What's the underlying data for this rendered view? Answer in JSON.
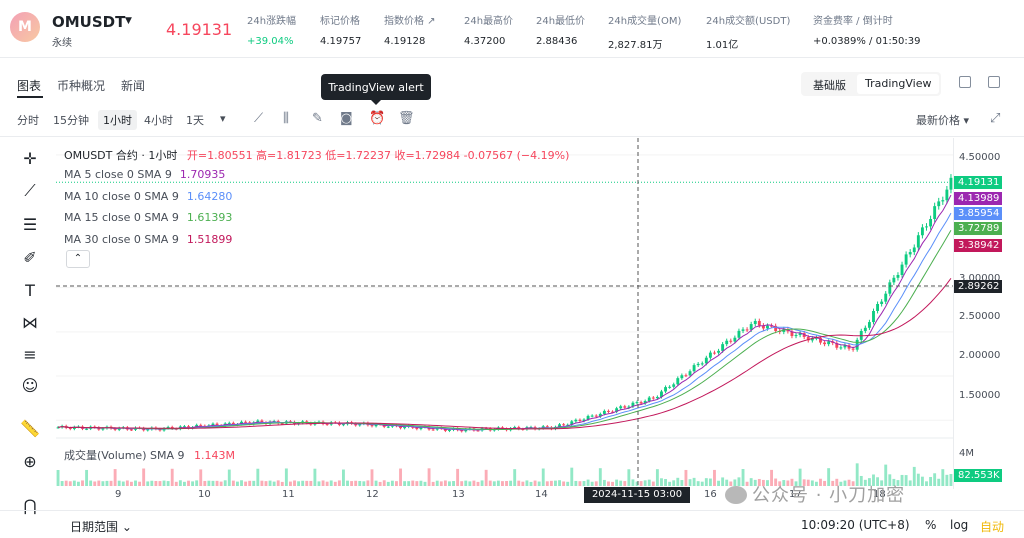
{
  "header": {
    "symbol": "OMUSDT",
    "subtitle": "永续",
    "dropdown": "▼",
    "last_price": "4.19131",
    "stats": [
      {
        "label": "24h涨跌幅",
        "value": "+39.04%",
        "color": "#0ecb81"
      },
      {
        "label": "标记价格",
        "value": "4.19757",
        "color": "#1e2329"
      },
      {
        "label": "指数价格 ↗",
        "value": "4.19128",
        "color": "#1e2329"
      },
      {
        "label": "24h最高价",
        "value": "4.37200",
        "color": "#1e2329"
      },
      {
        "label": "24h最低价",
        "value": "2.88436",
        "color": "#1e2329"
      },
      {
        "label": "24h成交量(OM)",
        "value": "2,827.81万",
        "color": "#1e2329"
      },
      {
        "label": "24h成交额(USDT)",
        "value": "1.01亿",
        "color": "#1e2329"
      },
      {
        "label": "资金费率 / 倒计时",
        "value": "+0.0389% / 01:50:39",
        "color": "#1e2329"
      }
    ]
  },
  "tabs": {
    "chart": "图表",
    "info": "币种概况",
    "news": "新闻"
  },
  "view_toggle": {
    "basic": "基础版",
    "tradingview": "TradingView"
  },
  "tooltip": "TradingView alert",
  "timeframes": {
    "items": [
      "分时",
      "15分钟",
      "1小时",
      "4小时",
      "1天"
    ],
    "selected": "1小时",
    "more": "▾"
  },
  "latest_price_menu": "最新价格 ▾",
  "legend": {
    "title": "OMUSDT 合约 · 1小时",
    "ohlc": "开=1.80551 高=1.81723 低=1.72237 收=1.72984 -0.07567 (−4.19%)",
    "ma": [
      {
        "label": "MA 5 close 0 SMA 9",
        "value": "1.70935",
        "color": "#9c27b0"
      },
      {
        "label": "MA 10 close 0 SMA 9",
        "value": "1.64280",
        "color": "#5b8ff9"
      },
      {
        "label": "MA 15 close 0 SMA 9",
        "value": "1.61393",
        "color": "#4caf50"
      },
      {
        "label": "MA 30 close 0 SMA 9",
        "value": "1.51899",
        "color": "#c2185b"
      }
    ],
    "collapse": "⌃",
    "volume_label": "成交量(Volume) SMA 9",
    "volume_value": "1.143M"
  },
  "y_axis": {
    "ticks": [
      "4.50000",
      "3.00000",
      "2.50000",
      "2.00000",
      "1.50000"
    ],
    "tags": [
      {
        "value": "4.19131",
        "color": "#0ecb81"
      },
      {
        "value": "4.13989",
        "color": "#9c27b0"
      },
      {
        "value": "3.85954",
        "color": "#5b8ff9"
      },
      {
        "value": "3.72789",
        "color": "#4caf50"
      },
      {
        "value": "3.38942",
        "color": "#c2185b"
      },
      {
        "value": "2.89262",
        "color": "#1e2329"
      }
    ],
    "vol_tick": "4M",
    "vol_tag": "82.553K"
  },
  "x_axis": {
    "ticks": [
      "9",
      "10",
      "11",
      "12",
      "13",
      "14",
      "16",
      "17",
      "18"
    ],
    "crosshair_label": "2024-11-15  03:00"
  },
  "bottom": {
    "date_range": "日期范围 ⌄",
    "time": "10:09:20 (UTC+8)",
    "percent": "%",
    "log": "log",
    "auto": "自动"
  },
  "watermark": "公众号 · 小刀加密",
  "chart_data": {
    "type": "candlestick",
    "title": "OMUSDT 合约 · 1小时",
    "x": [
      "9",
      "10",
      "11",
      "12",
      "13",
      "14",
      "15",
      "16",
      "17",
      "18"
    ],
    "close_approx": [
      1.42,
      1.4,
      1.48,
      1.46,
      1.39,
      1.42,
      1.75,
      2.6,
      2.3,
      4.19
    ],
    "ylim": [
      1.3,
      4.6
    ],
    "colors": {
      "up": "#0ecb81",
      "down": "#f6465d"
    }
  }
}
